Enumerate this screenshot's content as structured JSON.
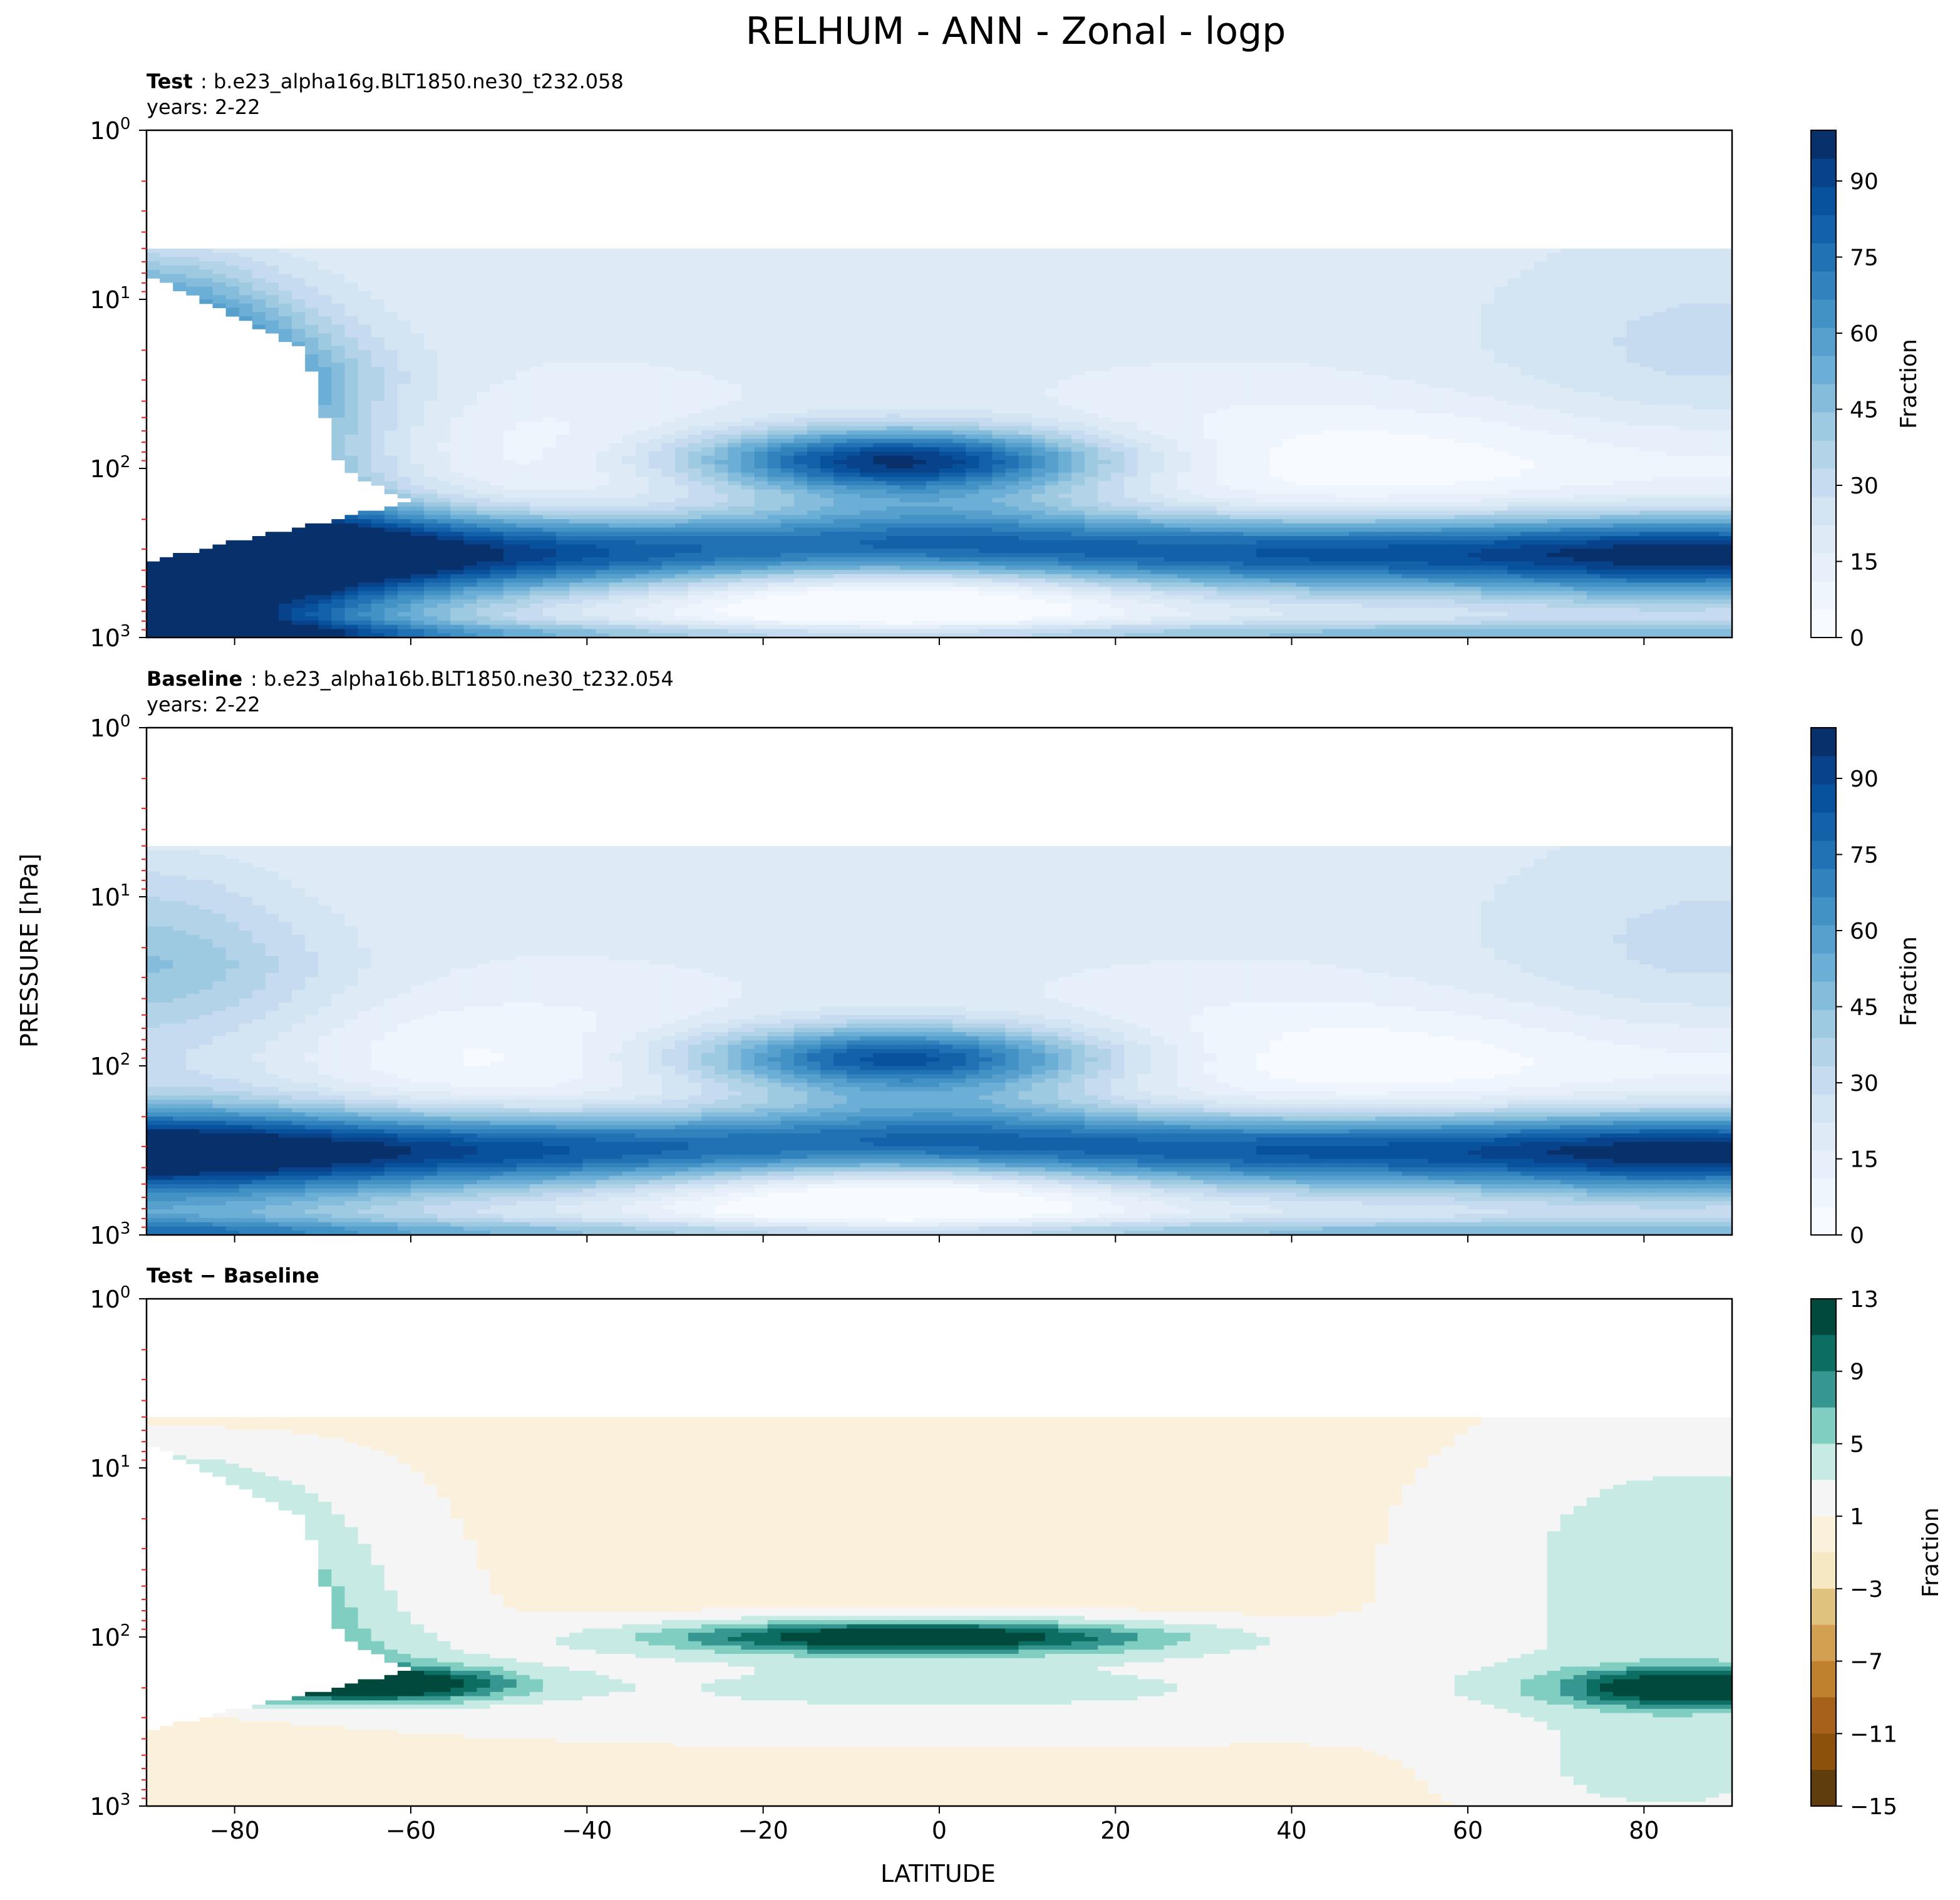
{
  "figure": {
    "title": "RELHUM - ANN - Zonal - logp",
    "shared_ylabel": "PRESSURE [hPa]",
    "shared_xlabel": "LATITUDE"
  },
  "chart_data": [
    {
      "type": "contour",
      "panel": "test",
      "label_bold": "Test",
      "label_rest": ": b.e23_alpha16g.BLT1850.ne30_t232.058",
      "years": "years: 2-22",
      "xlim": [
        -90,
        90
      ],
      "ylim_hpa": [
        1000,
        1
      ],
      "yscale": "log",
      "xticks": [
        -80,
        -60,
        -40,
        -20,
        0,
        20,
        40,
        60,
        80
      ],
      "yticks": [
        {
          "base": "10",
          "exp": "0"
        },
        {
          "base": "10",
          "exp": "1"
        },
        {
          "base": "10",
          "exp": "2"
        },
        {
          "base": "10",
          "exp": "3"
        }
      ],
      "colorbar": {
        "label": "Fraction",
        "ticks": [
          "0",
          "15",
          "30",
          "45",
          "60",
          "75",
          "90"
        ],
        "range": [
          0,
          100
        ],
        "colors": [
          "#f7fbff",
          "#eff5fc",
          "#e7f0fa",
          "#deebf7",
          "#d3e4f3",
          "#c6dbef",
          "#b3d3e8",
          "#9ecae1",
          "#85bcdc",
          "#6baed6",
          "#57a0ce",
          "#4292c6",
          "#3282be",
          "#2171b5",
          "#1361a9",
          "#08519c",
          "#08428a",
          "#08306b"
        ]
      },
      "fields": {
        "upper_cap_p": 5,
        "tropical_peak": 93,
        "south_polar_upper_max": 100,
        "south_polar_cutout": true
      }
    },
    {
      "type": "contour",
      "panel": "baseline",
      "label_bold": "Baseline",
      "label_rest": ": b.e23_alpha16b.BLT1850.ne30_t232.054",
      "years": "years: 2-22",
      "xlim": [
        -90,
        90
      ],
      "ylim_hpa": [
        1000,
        1
      ],
      "yscale": "log",
      "xticks": [
        -80,
        -60,
        -40,
        -20,
        0,
        20,
        40,
        60,
        80
      ],
      "yticks": [
        {
          "base": "10",
          "exp": "0"
        },
        {
          "base": "10",
          "exp": "1"
        },
        {
          "base": "10",
          "exp": "2"
        },
        {
          "base": "10",
          "exp": "3"
        }
      ],
      "colorbar": {
        "label": "Fraction",
        "ticks": [
          "0",
          "15",
          "30",
          "45",
          "60",
          "75",
          "90"
        ],
        "range": [
          0,
          100
        ]
      },
      "fields": {
        "upper_cap_p": 5,
        "tropical_peak": 82,
        "south_polar_upper_max": 40,
        "south_polar_cutout": false
      }
    },
    {
      "type": "contour",
      "panel": "difference",
      "label_bold": "Test − Baseline",
      "xlim": [
        -90,
        90
      ],
      "ylim_hpa": [
        1000,
        1
      ],
      "yscale": "log",
      "xticks": [
        -80,
        -60,
        -40,
        -20,
        0,
        20,
        40,
        60,
        80
      ],
      "yticks": [
        {
          "base": "10",
          "exp": "0"
        },
        {
          "base": "10",
          "exp": "1"
        },
        {
          "base": "10",
          "exp": "2"
        },
        {
          "base": "10",
          "exp": "3"
        }
      ],
      "colorbar": {
        "label": "Fraction",
        "ticks": [
          "13",
          "9",
          "5",
          "1",
          "−3",
          "−7",
          "−11",
          "−15"
        ],
        "range": [
          -15,
          13
        ],
        "levels": [
          13,
          11,
          9,
          7,
          5,
          3,
          1,
          -1,
          -3,
          -5,
          -7,
          -9,
          -11,
          -13,
          -15
        ],
        "colors": [
          "#01493d",
          "#0c6e62",
          "#35978f",
          "#80cdc1",
          "#c7eae5",
          "#f5f5f5",
          "#fbf0dc",
          "#f6e8c3",
          "#dfc27d",
          "#d2a050",
          "#bf812d",
          "#a6611a",
          "#8c510a",
          "#603d0c"
        ]
      },
      "fields": {
        "upper_cap_p": 5,
        "tropical_peak": 13,
        "south_polar_cutout": true
      }
    }
  ]
}
